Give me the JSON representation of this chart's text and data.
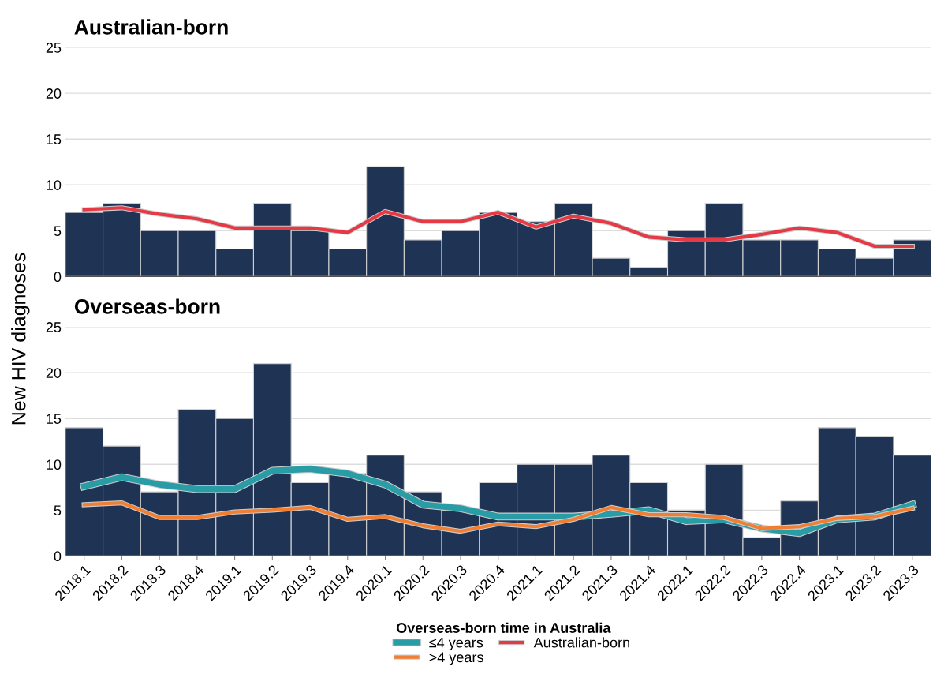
{
  "chart_data": [
    {
      "type": "bar",
      "title": "Australian-born",
      "ylabel": "New HIV diagnoses",
      "categories": [
        "2018.1",
        "2018.2",
        "2018.3",
        "2018.4",
        "2019.1",
        "2019.2",
        "2019.3",
        "2019.4",
        "2020.1",
        "2020.2",
        "2020.3",
        "2020.4",
        "2021.1",
        "2021.2",
        "2021.3",
        "2021.4",
        "2022.1",
        "2022.2",
        "2022.3",
        "2022.4",
        "2023.1",
        "2023.2",
        "2023.3"
      ],
      "series": [
        {
          "color": "#1f3354",
          "values": [
            7,
            8,
            5,
            5,
            3,
            8,
            5,
            3,
            12,
            4,
            5,
            7,
            6,
            8,
            2,
            1,
            5,
            8,
            4,
            4,
            3,
            2,
            4
          ]
        },
        {
          "type": "line",
          "name": "Australian-born",
          "color": "#e63946",
          "values": [
            7.3,
            7.5,
            6.8,
            6.3,
            5.3,
            5.3,
            5.3,
            4.8,
            7.1,
            6,
            6,
            7,
            5.4,
            6.6,
            5.8,
            4.3,
            4.0,
            4.0,
            4.6,
            5.3,
            4.8,
            3.3,
            3.3
          ]
        }
      ],
      "ylim": [
        0,
        25
      ],
      "yticks": [
        0,
        5,
        10,
        15,
        20,
        25
      ],
      "grid": "y",
      "tick_labels": "y",
      "legend": "bottom"
    },
    {
      "type": "bar",
      "title": "Overseas-born",
      "legend_title": "Overseas-born time in Australia",
      "categories": [
        "2018.1",
        "2018.2",
        "2018.3",
        "2018.4",
        "2019.1",
        "2019.2",
        "2019.3",
        "2019.4",
        "2020.1",
        "2020.2",
        "2020.3",
        "2020.4",
        "2021.1",
        "2021.2",
        "2021.3",
        "2021.4",
        "2022.1",
        "2022.2",
        "2022.3",
        "2022.4",
        "2023.1",
        "2023.2",
        "2023.3"
      ],
      "series": [
        {
          "color": "#1f3354",
          "values": [
            14,
            12,
            7,
            16,
            15,
            21,
            8,
            9,
            11,
            7,
            5,
            8,
            10,
            10,
            11,
            8,
            5,
            10,
            2,
            6,
            14,
            13,
            11
          ]
        },
        {
          "type": "line",
          "name": "≤4 years",
          "color": "#2a9ca5",
          "values": [
            7.6,
            8.6,
            7.8,
            7.3,
            7.3,
            9.3,
            9.5,
            9,
            7.8,
            5.6,
            5.2,
            4.3,
            4.3,
            4.3,
            4.6,
            5.0,
            3.8,
            4.0,
            3.0,
            2.5,
            4.0,
            4.3,
            5.6
          ]
        },
        {
          "type": "line",
          "name": ">4 years",
          "color": "#f07f33",
          "values": [
            5.6,
            5.8,
            4.2,
            4.2,
            4.8,
            5.0,
            5.3,
            4.0,
            4.3,
            3.3,
            2.7,
            3.5,
            3.2,
            4.0,
            5.3,
            4.5,
            4.5,
            4.2,
            3.0,
            3.2,
            4.1,
            4.3,
            5.2
          ]
        }
      ],
      "ylim": [
        0,
        25
      ],
      "yticks": [
        0,
        5,
        10,
        15,
        20,
        25
      ],
      "grid": "y",
      "legend": "bottom"
    }
  ]
}
